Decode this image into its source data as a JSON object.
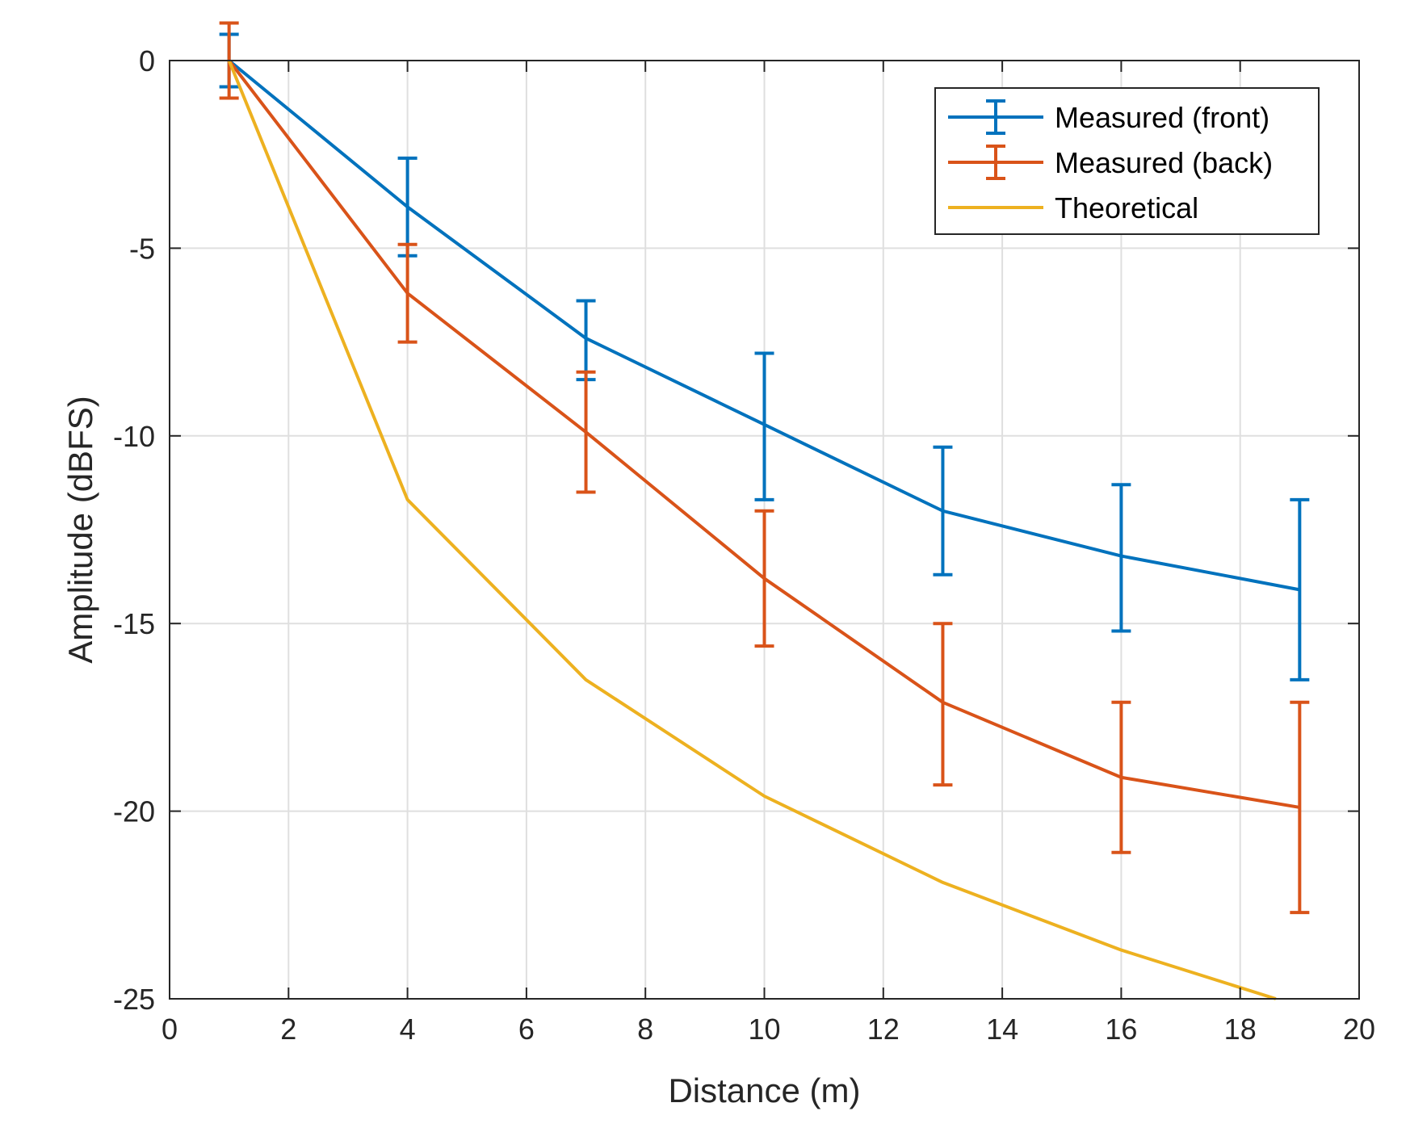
{
  "chart_data": {
    "type": "line",
    "title": "",
    "xlabel": "Distance (m)",
    "ylabel": "Amplitude (dBFS)",
    "xlim": [
      0,
      20
    ],
    "ylim": [
      -25,
      0
    ],
    "xticks": [
      0,
      2,
      4,
      6,
      8,
      10,
      12,
      14,
      16,
      18,
      20
    ],
    "yticks": [
      0,
      -5,
      -10,
      -15,
      -20,
      -25
    ],
    "grid": true,
    "legend_position": "top-right",
    "series": [
      {
        "name": "Measured (front)",
        "color": "#0072BD",
        "x": [
          1,
          4,
          7,
          10,
          13,
          16,
          19
        ],
        "y": [
          0,
          -3.9,
          -7.4,
          -9.7,
          -12.0,
          -13.2,
          -14.1
        ],
        "err_low": [
          0.7,
          1.3,
          1.1,
          2.0,
          1.7,
          2.0,
          2.4
        ],
        "err_high": [
          0.7,
          1.3,
          1.0,
          1.9,
          1.7,
          1.9,
          2.4
        ],
        "has_errorbars": true
      },
      {
        "name": "Measured (back)",
        "color": "#D95319",
        "x": [
          1,
          4,
          7,
          10,
          13,
          16,
          19
        ],
        "y": [
          0,
          -6.2,
          -9.9,
          -13.8,
          -17.1,
          -19.1,
          -19.9
        ],
        "err_low": [
          1.0,
          1.3,
          1.6,
          1.8,
          2.2,
          2.0,
          2.8
        ],
        "err_high": [
          1.0,
          1.3,
          1.6,
          1.8,
          2.1,
          2.0,
          2.8
        ],
        "has_errorbars": true
      },
      {
        "name": "Theoretical",
        "color": "#EDB120",
        "x": [
          1,
          4,
          7,
          10,
          13,
          16,
          18.6
        ],
        "y": [
          0,
          -11.7,
          -16.5,
          -19.6,
          -21.9,
          -23.7,
          -25
        ],
        "has_errorbars": false
      }
    ]
  }
}
